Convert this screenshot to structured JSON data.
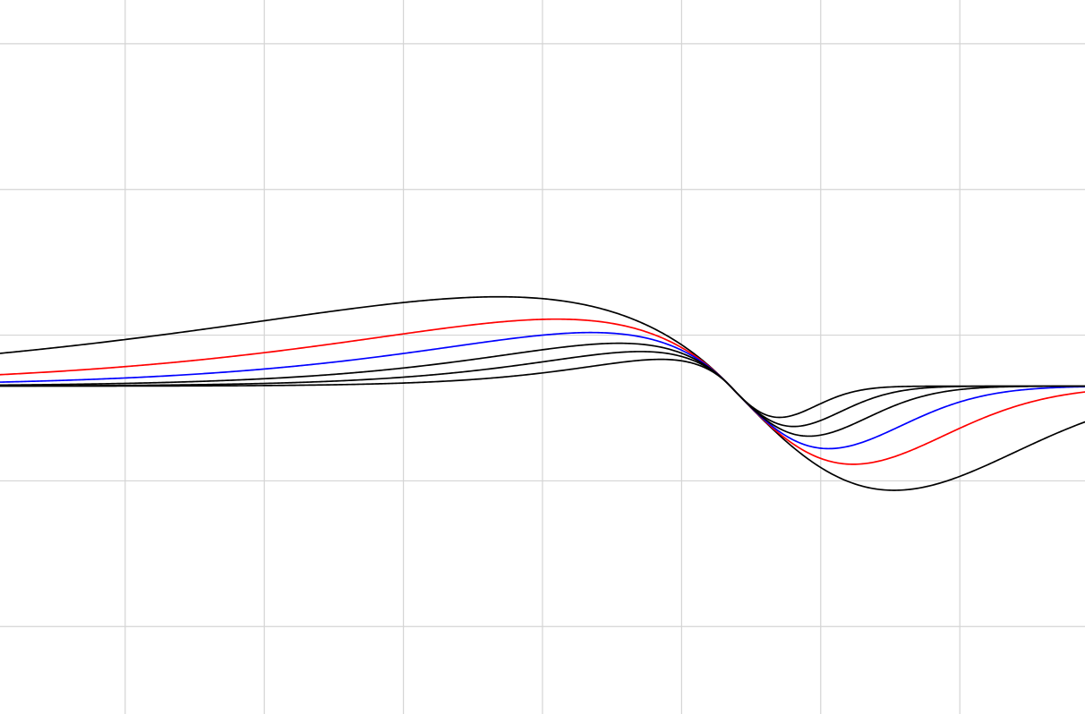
{
  "chart_data": {
    "type": "line",
    "title": "",
    "xlabel": "",
    "ylabel": "",
    "grid": true,
    "xlim": [
      -0.9,
      6.9
    ],
    "ylim": [
      -0.6,
      4.3
    ],
    "x_gridlines": [
      0,
      1,
      2,
      3,
      4,
      5,
      6
    ],
    "y_gridlines": [
      0,
      1,
      2,
      3,
      4
    ],
    "crossing_point": [
      4.35,
      1.65
    ],
    "series": [
      {
        "color": "#000000",
        "k": 0.6
      },
      {
        "color": "#ff0000",
        "k": 0.8
      },
      {
        "color": "#0000ff",
        "k": 1.0
      },
      {
        "color": "#000000",
        "k": 1.25
      },
      {
        "color": "#000000",
        "k": 1.55
      },
      {
        "color": "#000000",
        "k": 2.0
      }
    ]
  }
}
